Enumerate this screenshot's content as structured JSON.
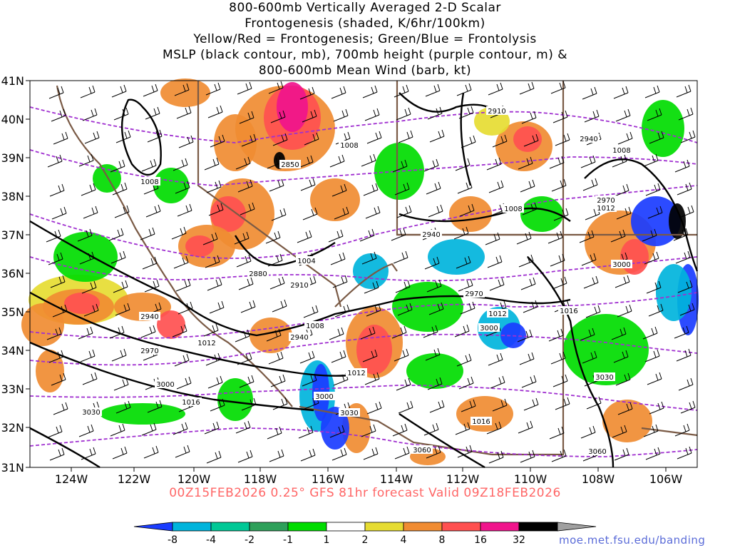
{
  "title": {
    "lines": [
      "800-600mb Vertically Averaged 2-D Scalar",
      "Frontogenesis (shaded, K/6hr/100km)",
      "Yellow/Red = Frontogenesis;  Green/Blue = Frontolysis",
      "MSLP (black contour, mb), 700mb height (purple contour, m) &",
      "800-600mb Mean Wind (barb, kt)"
    ]
  },
  "footer": "00Z15FEB2026 0.25° GFS 81hr forecast Valid 09Z18FEB2026",
  "credit": "moe.met.fsu.edu/banding",
  "axes": {
    "lat_labels": [
      "41N",
      "40N",
      "39N",
      "38N",
      "37N",
      "36N",
      "35N",
      "34N",
      "33N",
      "32N",
      "31N"
    ],
    "lon_labels": [
      "124W",
      "122W",
      "120W",
      "118W",
      "116W",
      "114W",
      "112W",
      "110W",
      "108W",
      "106W"
    ]
  },
  "colorbar": {
    "labels": [
      "-8",
      "-4",
      "-2",
      "-1",
      "1",
      "2",
      "4",
      "8",
      "16",
      "32"
    ],
    "colors": [
      "#1a3cff",
      "#00b4dc",
      "#00c896",
      "#2ea05a",
      "#00dc00",
      "#ffffff",
      "#e6dc32",
      "#f08c32",
      "#ff5050",
      "#f0148c",
      "#000000",
      "#a0a0a0"
    ]
  },
  "fill_colors": {
    "blue": "#1a3cff",
    "cyan": "#00b4dc",
    "teal": "#00c896",
    "green": "#00dc00",
    "yellow": "#e6dc32",
    "orange": "#f08c32",
    "red": "#ff5050",
    "magenta": "#f0148c",
    "black": "#000000"
  },
  "mslp_labels": [
    "1008",
    "1008",
    "1008",
    "1008",
    "1004",
    "1008",
    "1012",
    "1012",
    "1012",
    "1012",
    "1016",
    "1016",
    "1016"
  ],
  "height_labels": [
    "2910",
    "2940",
    "2850",
    "2940",
    "2970",
    "2880",
    "2910",
    "2940",
    "2940",
    "2970",
    "2970",
    "3000",
    "3000",
    "3000",
    "3030",
    "3030",
    "3000",
    "3030",
    "3060",
    "3060"
  ]
}
